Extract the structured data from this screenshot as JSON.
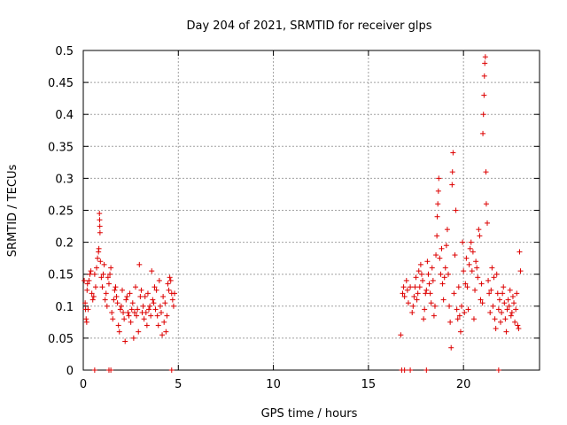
{
  "chart_data": {
    "type": "scatter",
    "title": "Day 204 of 2021, SRMTID for receiver glps",
    "xlabel": "GPS time / hours",
    "ylabel": "SRMTID / TECUs",
    "xlim": [
      0,
      24
    ],
    "ylim": [
      0,
      0.5
    ],
    "grid": true,
    "x_ticks": [
      0,
      5,
      10,
      15,
      20
    ],
    "x_tick_labels": [
      "0",
      "5",
      "10",
      "15",
      "20"
    ],
    "y_ticks": [
      0,
      0.05,
      0.1,
      0.15,
      0.2,
      0.25,
      0.3,
      0.35,
      0.4,
      0.45,
      0.5
    ],
    "y_tick_labels": [
      "0",
      "0.05",
      "0.1",
      "0.15",
      "0.2",
      "0.25",
      "0.3",
      "0.35",
      "0.4",
      "0.45",
      "0.5"
    ],
    "marker": "+",
    "color": "#dd0000",
    "series": [
      {
        "name": "SRMTID",
        "points": [
          [
            0.05,
            0.14
          ],
          [
            0.1,
            0.105
          ],
          [
            0.12,
            0.095
          ],
          [
            0.15,
            0.08
          ],
          [
            0.18,
            0.075
          ],
          [
            0.2,
            0.125
          ],
          [
            0.22,
            0.135
          ],
          [
            0.25,
            0.095
          ],
          [
            0.3,
            0.14
          ],
          [
            0.35,
            0.15
          ],
          [
            0.4,
            0.155
          ],
          [
            0.45,
            0.12
          ],
          [
            0.5,
            0.11
          ],
          [
            0.55,
            0.115
          ],
          [
            0.6,
            0.15
          ],
          [
            0.65,
            0.13
          ],
          [
            0.7,
            0.16
          ],
          [
            0.75,
            0.175
          ],
          [
            0.8,
            0.185
          ],
          [
            0.82,
            0.19
          ],
          [
            0.85,
            0.245
          ],
          [
            0.86,
            0.235
          ],
          [
            0.87,
            0.225
          ],
          [
            0.88,
            0.215
          ],
          [
            0.9,
            0.17
          ],
          [
            0.95,
            0.145
          ],
          [
            1.0,
            0.13
          ],
          [
            1.05,
            0.15
          ],
          [
            1.1,
            0.165
          ],
          [
            1.15,
            0.11
          ],
          [
            1.2,
            0.12
          ],
          [
            1.25,
            0.1
          ],
          [
            1.3,
            0.145
          ],
          [
            1.35,
            0.135
          ],
          [
            1.4,
            0.15
          ],
          [
            1.45,
            0.16
          ],
          [
            1.5,
            0.09
          ],
          [
            1.55,
            0.08
          ],
          [
            1.6,
            0.11
          ],
          [
            1.65,
            0.125
          ],
          [
            1.7,
            0.13
          ],
          [
            1.75,
            0.115
          ],
          [
            1.8,
            0.105
          ],
          [
            1.85,
            0.07
          ],
          [
            1.9,
            0.06
          ],
          [
            1.95,
            0.095
          ],
          [
            2.0,
            0.1
          ],
          [
            2.05,
            0.125
          ],
          [
            2.1,
            0.09
          ],
          [
            2.15,
            0.08
          ],
          [
            2.2,
            0.045
          ],
          [
            2.25,
            0.11
          ],
          [
            2.3,
            0.115
          ],
          [
            2.35,
            0.09
          ],
          [
            2.4,
            0.085
          ],
          [
            2.45,
            0.12
          ],
          [
            2.5,
            0.075
          ],
          [
            2.55,
            0.095
          ],
          [
            2.6,
            0.105
          ],
          [
            2.65,
            0.05
          ],
          [
            2.7,
            0.09
          ],
          [
            2.75,
            0.13
          ],
          [
            2.8,
            0.085
          ],
          [
            2.85,
            0.095
          ],
          [
            2.9,
            0.06
          ],
          [
            2.95,
            0.165
          ],
          [
            3.0,
            0.115
          ],
          [
            3.05,
            0.125
          ],
          [
            3.1,
            0.09
          ],
          [
            3.15,
            0.1
          ],
          [
            3.2,
            0.08
          ],
          [
            3.25,
            0.115
          ],
          [
            3.3,
            0.09
          ],
          [
            3.35,
            0.07
          ],
          [
            3.4,
            0.12
          ],
          [
            3.45,
            0.095
          ],
          [
            3.5,
            0.1
          ],
          [
            3.55,
            0.085
          ],
          [
            3.6,
            0.155
          ],
          [
            3.65,
            0.11
          ],
          [
            3.7,
            0.105
          ],
          [
            3.75,
            0.13
          ],
          [
            3.8,
            0.095
          ],
          [
            3.85,
            0.125
          ],
          [
            3.9,
            0.085
          ],
          [
            3.95,
            0.07
          ],
          [
            4.0,
            0.14
          ],
          [
            4.05,
            0.1
          ],
          [
            4.1,
            0.09
          ],
          [
            4.15,
            0.055
          ],
          [
            4.2,
            0.115
          ],
          [
            4.25,
            0.075
          ],
          [
            4.3,
            0.105
          ],
          [
            4.35,
            0.06
          ],
          [
            4.4,
            0.085
          ],
          [
            4.45,
            0.135
          ],
          [
            4.5,
            0.125
          ],
          [
            4.55,
            0.145
          ],
          [
            4.6,
            0.14
          ],
          [
            4.65,
            0.12
          ],
          [
            4.7,
            0.11
          ],
          [
            4.75,
            0.1
          ],
          [
            4.8,
            0.12
          ],
          [
            16.7,
            0.055
          ],
          [
            16.8,
            0.12
          ],
          [
            16.85,
            0.13
          ],
          [
            16.9,
            0.115
          ],
          [
            17.0,
            0.14
          ],
          [
            17.05,
            0.125
          ],
          [
            17.1,
            0.105
          ],
          [
            17.2,
            0.13
          ],
          [
            17.3,
            0.09
          ],
          [
            17.35,
            0.1
          ],
          [
            17.4,
            0.115
          ],
          [
            17.45,
            0.13
          ],
          [
            17.5,
            0.145
          ],
          [
            17.55,
            0.11
          ],
          [
            17.6,
            0.12
          ],
          [
            17.65,
            0.155
          ],
          [
            17.7,
            0.13
          ],
          [
            17.75,
            0.165
          ],
          [
            17.8,
            0.15
          ],
          [
            17.85,
            0.14
          ],
          [
            17.9,
            0.08
          ],
          [
            17.95,
            0.095
          ],
          [
            18.0,
            0.12
          ],
          [
            18.05,
            0.125
          ],
          [
            18.1,
            0.17
          ],
          [
            18.15,
            0.15
          ],
          [
            18.2,
            0.135
          ],
          [
            18.25,
            0.12
          ],
          [
            18.3,
            0.105
          ],
          [
            18.35,
            0.16
          ],
          [
            18.4,
            0.14
          ],
          [
            18.45,
            0.085
          ],
          [
            18.5,
            0.1
          ],
          [
            18.55,
            0.18
          ],
          [
            18.6,
            0.21
          ],
          [
            18.62,
            0.24
          ],
          [
            18.65,
            0.26
          ],
          [
            18.68,
            0.28
          ],
          [
            18.7,
            0.3
          ],
          [
            18.75,
            0.175
          ],
          [
            18.8,
            0.15
          ],
          [
            18.85,
            0.19
          ],
          [
            18.9,
            0.135
          ],
          [
            18.95,
            0.11
          ],
          [
            19.0,
            0.145
          ],
          [
            19.05,
            0.16
          ],
          [
            19.1,
            0.195
          ],
          [
            19.15,
            0.22
          ],
          [
            19.2,
            0.15
          ],
          [
            19.25,
            0.1
          ],
          [
            19.3,
            0.075
          ],
          [
            19.35,
            0.035
          ],
          [
            19.4,
            0.29
          ],
          [
            19.42,
            0.31
          ],
          [
            19.45,
            0.34
          ],
          [
            19.5,
            0.12
          ],
          [
            19.55,
            0.18
          ],
          [
            19.6,
            0.25
          ],
          [
            19.65,
            0.095
          ],
          [
            19.7,
            0.08
          ],
          [
            19.75,
            0.13
          ],
          [
            19.8,
            0.085
          ],
          [
            19.85,
            0.06
          ],
          [
            19.9,
            0.1
          ],
          [
            19.95,
            0.2
          ],
          [
            20.0,
            0.155
          ],
          [
            20.05,
            0.09
          ],
          [
            20.1,
            0.135
          ],
          [
            20.15,
            0.175
          ],
          [
            20.2,
            0.13
          ],
          [
            20.25,
            0.095
          ],
          [
            20.3,
            0.165
          ],
          [
            20.35,
            0.19
          ],
          [
            20.4,
            0.2
          ],
          [
            20.45,
            0.155
          ],
          [
            20.5,
            0.185
          ],
          [
            20.55,
            0.08
          ],
          [
            20.6,
            0.125
          ],
          [
            20.65,
            0.17
          ],
          [
            20.7,
            0.16
          ],
          [
            20.75,
            0.145
          ],
          [
            20.8,
            0.22
          ],
          [
            20.85,
            0.21
          ],
          [
            20.9,
            0.11
          ],
          [
            20.95,
            0.135
          ],
          [
            21.0,
            0.105
          ],
          [
            21.02,
            0.37
          ],
          [
            21.05,
            0.4
          ],
          [
            21.08,
            0.43
          ],
          [
            21.1,
            0.46
          ],
          [
            21.12,
            0.48
          ],
          [
            21.15,
            0.49
          ],
          [
            21.18,
            0.31
          ],
          [
            21.2,
            0.26
          ],
          [
            21.25,
            0.23
          ],
          [
            21.3,
            0.14
          ],
          [
            21.35,
            0.12
          ],
          [
            21.4,
            0.09
          ],
          [
            21.45,
            0.125
          ],
          [
            21.5,
            0.16
          ],
          [
            21.55,
            0.1
          ],
          [
            21.6,
            0.145
          ],
          [
            21.65,
            0.08
          ],
          [
            21.7,
            0.065
          ],
          [
            21.75,
            0.15
          ],
          [
            21.8,
            0.12
          ],
          [
            21.85,
            0.095
          ],
          [
            21.9,
            0.11
          ],
          [
            21.95,
            0.075
          ],
          [
            22.0,
            0.09
          ],
          [
            22.05,
            0.12
          ],
          [
            22.1,
            0.13
          ],
          [
            22.15,
            0.105
          ],
          [
            22.2,
            0.08
          ],
          [
            22.25,
            0.06
          ],
          [
            22.3,
            0.095
          ],
          [
            22.35,
            0.11
          ],
          [
            22.4,
            0.1
          ],
          [
            22.45,
            0.125
          ],
          [
            22.5,
            0.085
          ],
          [
            22.55,
            0.09
          ],
          [
            22.6,
            0.115
          ],
          [
            22.65,
            0.105
          ],
          [
            22.7,
            0.075
          ],
          [
            22.75,
            0.095
          ],
          [
            22.8,
            0.12
          ],
          [
            22.85,
            0.07
          ],
          [
            22.9,
            0.065
          ],
          [
            22.95,
            0.185
          ],
          [
            23.0,
            0.155
          ],
          [
            0.6,
            0.0
          ],
          [
            1.35,
            0.0
          ],
          [
            1.45,
            0.0
          ],
          [
            4.65,
            0.0
          ],
          [
            16.75,
            0.0
          ],
          [
            16.9,
            0.0
          ],
          [
            17.2,
            0.0
          ],
          [
            18.05,
            0.0
          ],
          [
            21.85,
            0.0
          ]
        ]
      }
    ]
  }
}
